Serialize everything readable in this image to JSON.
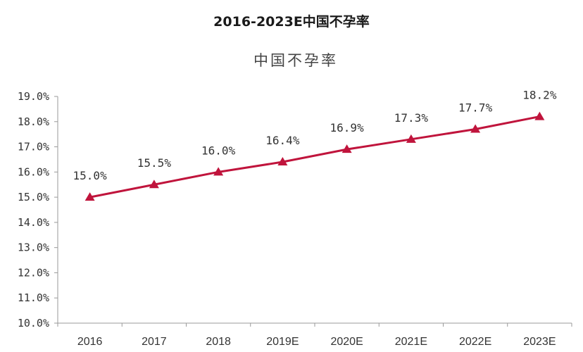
{
  "page": {
    "title": "2016-2023E中国不孕率"
  },
  "chart_data": {
    "type": "line",
    "title": "中国不孕率",
    "categories": [
      "2016",
      "2017",
      "2018",
      "2019E",
      "2020E",
      "2021E",
      "2022E",
      "2023E"
    ],
    "series": [
      {
        "values": [
          15.0,
          15.5,
          16.0,
          16.4,
          16.9,
          17.3,
          17.7,
          18.2
        ],
        "labels": [
          "15.0%",
          "15.5%",
          "16.0%",
          "16.4%",
          "16.9%",
          "17.3%",
          "17.7%",
          "18.2%"
        ],
        "color": "#c0143c",
        "marker": "triangle"
      }
    ],
    "ylim": [
      10,
      19
    ],
    "yticks": [
      {
        "value": 19,
        "label": "19.0%"
      },
      {
        "value": 18,
        "label": "18.0%"
      },
      {
        "value": 17,
        "label": "17.0%"
      },
      {
        "value": 16,
        "label": "16.0%"
      },
      {
        "value": 15,
        "label": "15.0%"
      },
      {
        "value": 14,
        "label": "14.0%"
      },
      {
        "value": 13,
        "label": "13.0%"
      },
      {
        "value": 12,
        "label": "12.0%"
      },
      {
        "value": 11,
        "label": "11.0%"
      },
      {
        "value": 10,
        "label": "10.0%"
      }
    ],
    "grid": false,
    "legend": "none",
    "axis_color": "#999999"
  }
}
